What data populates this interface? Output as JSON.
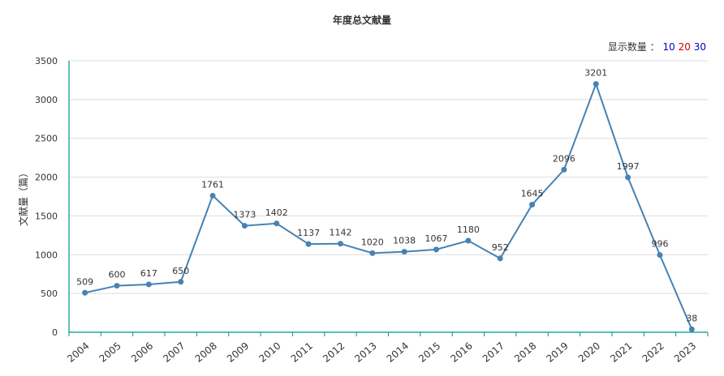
{
  "chart_data": {
    "type": "line",
    "title": "年度总文献量",
    "ylabel": "文献量（篇）",
    "xlabel": "",
    "ylim": [
      0,
      3500
    ],
    "yticks": [
      0,
      500,
      1000,
      1500,
      2000,
      2500,
      3000,
      3500
    ],
    "grid": true,
    "categories": [
      "2004",
      "2005",
      "2006",
      "2007",
      "2008",
      "2009",
      "2010",
      "2011",
      "2012",
      "2013",
      "2014",
      "2015",
      "2016",
      "2017",
      "2018",
      "2019",
      "2020",
      "2021",
      "2022",
      "2023"
    ],
    "values": [
      509,
      600,
      617,
      650,
      1761,
      1373,
      1402,
      1137,
      1142,
      1020,
      1038,
      1067,
      1180,
      952,
      1645,
      2096,
      3201,
      1997,
      996,
      38
    ],
    "series_color": "#4682b4"
  },
  "count_selector": {
    "label": "显示数量 ：",
    "options": [
      {
        "label": "10",
        "color": "#0000cc"
      },
      {
        "label": "20",
        "color": "#cc0000"
      },
      {
        "label": "30",
        "color": "#0000cc"
      }
    ]
  }
}
